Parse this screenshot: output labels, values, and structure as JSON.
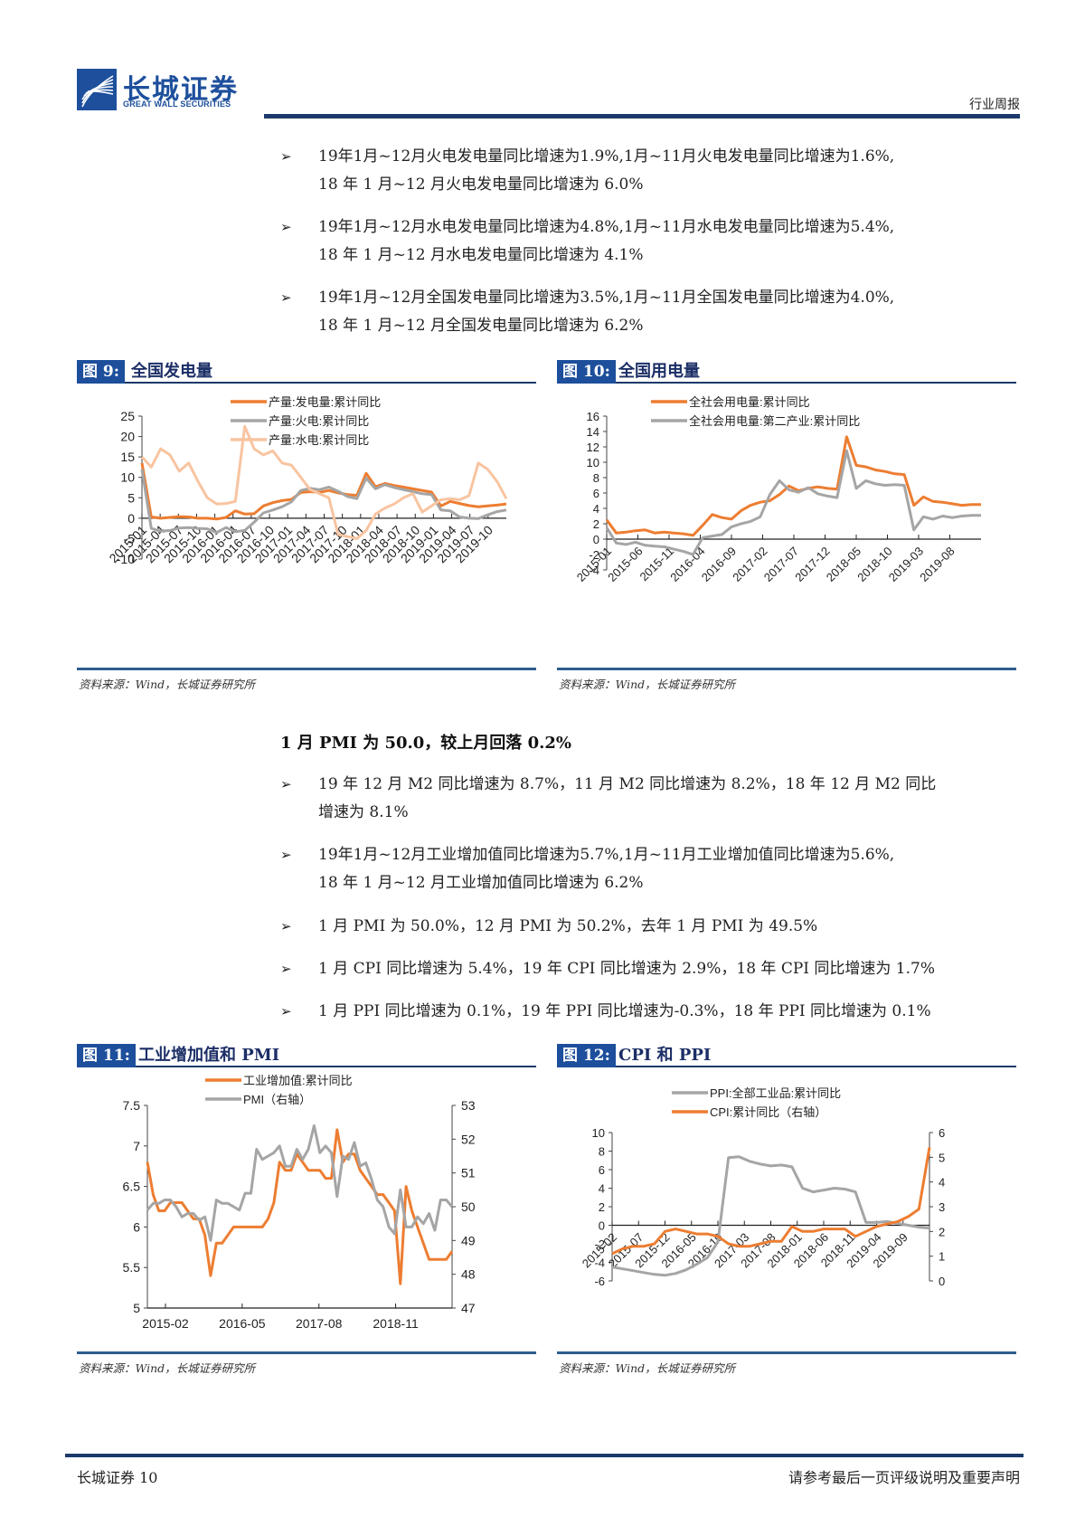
{
  "header": {
    "logo_cn": "长城证券",
    "logo_en": "GREAT WALL SECURITIES",
    "doc_type": "行业周报"
  },
  "bullets_top": [
    {
      "line1": "19年1月~12月火电发电量同比增速为1.9%,1月~11月火电发电量同比增速为1.6%,",
      "line2": "18 年 1 月~12 月火电发电量同比增速为 6.0%"
    },
    {
      "line1": "19年1月~12月水电发电量同比增速为4.8%,1月~11月水电发电量同比增速为5.4%,",
      "line2": "18 年 1 月~12 月水电发电量同比增速为 4.1%"
    },
    {
      "line1": "19年1月~12月全国发电量同比增速为3.5%,1月~11月全国发电量同比增速为4.0%,",
      "line2": "18 年 1 月~12 月全国发电量同比增速为 6.2%"
    }
  ],
  "section": {
    "title": "1 月 PMI 为 50.0，较上月回落 0.2%"
  },
  "bullets_mid": [
    {
      "line1": "19 年 12 月 M2 同比增速为 8.7%，11 月 M2 同比增速为 8.2%，18 年 12 月 M2 同比",
      "line2": "增速为 8.1%"
    },
    {
      "line1": "19年1月~12月工业增加值同比增速为5.7%,1月~11月工业增加值同比增速为5.6%,",
      "line2": "18 年 1 月~12 月工业增加值同比增速为 6.2%"
    },
    {
      "line1": "1 月 PMI 为 50.0%，12 月 PMI 为 50.2%，去年 1 月 PMI 为 49.5%",
      "line2": ""
    },
    {
      "line1": "1 月 CPI 同比增速为 5.4%，19 年 CPI 同比增速为 2.9%，18 年 CPI 同比增速为 1.7%",
      "line2": ""
    },
    {
      "line1": "1 月 PPI 同比增速为 0.1%，19 年 PPI 同比增速为-0.3%，18 年 PPI 同比增速为 0.1%",
      "line2": ""
    }
  ],
  "bullet_mark": "➢",
  "figures": {
    "fig9": {
      "num": "图 9:",
      "title": "全国发电量",
      "source": "资料来源：Wind，长城证券研究所"
    },
    "fig10": {
      "num": "图 10:",
      "title": "全国用电量",
      "source": "资料来源：Wind，长城证券研究所"
    },
    "fig11": {
      "num": "图 11:",
      "title": "工业增加值和 PMI",
      "source": "资料来源：Wind，长城证券研究所"
    },
    "fig12": {
      "num": "图 12:",
      "title": "CPI 和 PPI",
      "source": "资料来源：Wind，长城证券研究所"
    }
  },
  "colors": {
    "orange": "#ed7d31",
    "gray": "#a5a5a5",
    "light_orange": "#f8c4a0",
    "navy": "#1b3a6b",
    "brand_blue": "#1d4f9c"
  },
  "chart_data": [
    {
      "id": "fig9",
      "type": "line",
      "title": "全国发电量",
      "xlabel": "",
      "ylabel": "",
      "ylim": [
        -10,
        25
      ],
      "yticks": [
        -10,
        -5,
        0,
        5,
        10,
        15,
        20,
        25
      ],
      "x_tick_labels": [
        "2015-01",
        "2015-04",
        "2015-07",
        "2015-10",
        "2016-01",
        "2016-04",
        "2016-07",
        "2016-10",
        "2017-01",
        "2017-04",
        "2017-07",
        "2017-10",
        "2018-01",
        "2018-04",
        "2018-07",
        "2018-10",
        "2019-01",
        "2019-04",
        "2019-07",
        "2019-10"
      ],
      "legend_position": "top",
      "series": [
        {
          "name": "产量:发电量:累计同比",
          "color": "#ed7d31",
          "values": [
            13.5,
            0.3,
            0.0,
            0.2,
            0.4,
            0.3,
            0.0,
            0.0,
            -0.2,
            0.2,
            1.8,
            1.0,
            1.1,
            3.0,
            3.8,
            4.3,
            4.6,
            6.3,
            6.5,
            6.3,
            6.8,
            6.2,
            5.8,
            5.6,
            11.0,
            7.7,
            8.5,
            8.0,
            7.6,
            7.2,
            6.8,
            6.4,
            3.0,
            4.1,
            3.6,
            3.1,
            2.8,
            3.0,
            3.2,
            3.5
          ]
        },
        {
          "name": "产量:火电:累计同比",
          "color": "#a5a5a5",
          "values": [
            12.0,
            -2.5,
            -3.2,
            -3.0,
            -2.4,
            -2.3,
            -2.5,
            -2.6,
            -3.5,
            -2.3,
            -3.3,
            -3.0,
            -1.0,
            1.3,
            2.0,
            2.8,
            4.0,
            6.8,
            7.3,
            7.0,
            7.6,
            6.6,
            5.3,
            4.8,
            9.8,
            7.2,
            8.2,
            7.5,
            7.0,
            6.5,
            6.0,
            5.8,
            2.0,
            1.8,
            0.3,
            0.0,
            -0.1,
            0.8,
            1.6,
            2.0
          ]
        },
        {
          "name": "产量:水电:累计同比",
          "color": "#f8c4a0",
          "values": [
            15.0,
            12.5,
            17.0,
            15.5,
            11.5,
            13.5,
            9.0,
            5.0,
            3.5,
            3.6,
            4.1,
            22.5,
            17.0,
            15.5,
            16.5,
            13.5,
            13.0,
            10.0,
            7.0,
            6.0,
            5.0,
            -4.0,
            -4.5,
            -5.0,
            -3.0,
            1.0,
            2.5,
            3.5,
            5.0,
            6.0,
            1.5,
            3.0,
            4.5,
            4.8,
            4.5,
            5.5,
            13.5,
            12.0,
            9.0,
            4.8
          ]
        }
      ]
    },
    {
      "id": "fig10",
      "type": "line",
      "title": "全国用电量",
      "xlabel": "",
      "ylabel": "",
      "ylim": [
        -4,
        16
      ],
      "yticks": [
        -4,
        -2,
        0,
        2,
        4,
        6,
        8,
        10,
        12,
        14,
        16
      ],
      "x_tick_labels": [
        "2015-01",
        "2015-06",
        "2015-11",
        "2016-04",
        "2016-09",
        "2017-02",
        "2017-07",
        "2017-12",
        "2018-05",
        "2018-10",
        "2019-03",
        "2019-08"
      ],
      "legend_position": "top",
      "series": [
        {
          "name": "全社会用电量:累计同比",
          "color": "#ed7d31",
          "values": [
            2.5,
            0.8,
            0.9,
            1.1,
            1.2,
            0.8,
            0.9,
            0.8,
            0.7,
            0.5,
            1.8,
            3.2,
            2.8,
            2.6,
            3.7,
            4.4,
            4.8,
            5.0,
            5.8,
            6.9,
            6.3,
            6.6,
            6.8,
            6.6,
            6.5,
            13.3,
            9.6,
            9.4,
            9.0,
            8.8,
            8.5,
            8.4,
            4.4,
            5.5,
            4.9,
            4.8,
            4.6,
            4.4,
            4.5,
            4.5
          ]
        },
        {
          "name": "全社会用电量:第二产业:累计同比",
          "color": "#a5a5a5",
          "values": [
            1.5,
            -0.5,
            -0.7,
            -0.4,
            -0.8,
            -0.9,
            -1.0,
            -1.3,
            -1.6,
            -2.0,
            0.2,
            0.4,
            0.6,
            1.6,
            2.0,
            2.3,
            2.9,
            5.8,
            7.6,
            6.4,
            6.1,
            6.7,
            5.9,
            5.6,
            5.4,
            11.5,
            6.6,
            7.6,
            7.2,
            7.0,
            7.1,
            7.0,
            1.2,
            2.9,
            2.6,
            3.0,
            2.8,
            3.0,
            3.1,
            3.1
          ]
        }
      ]
    },
    {
      "id": "fig11",
      "type": "line",
      "title": "工业增加值和 PMI",
      "xlabel": "",
      "ylabel": "",
      "ylim": [
        5,
        7.5
      ],
      "yticks": [
        5,
        5.5,
        6,
        6.5,
        7,
        7.5
      ],
      "y2lim": [
        47,
        53
      ],
      "y2ticks": [
        47,
        48,
        49,
        50,
        51,
        52,
        53
      ],
      "x_tick_labels": [
        "2015-02",
        "2016-05",
        "2017-08",
        "2018-11"
      ],
      "legend_position": "top",
      "series": [
        {
          "name": "工业增加值:累计同比",
          "axis": "left",
          "color": "#ed7d31",
          "values": [
            6.8,
            6.4,
            6.2,
            6.2,
            6.3,
            6.3,
            6.3,
            6.2,
            6.1,
            6.1,
            5.9,
            5.4,
            5.8,
            5.8,
            5.9,
            6.0,
            6.0,
            6.0,
            6.0,
            6.0,
            6.0,
            6.1,
            6.3,
            6.8,
            6.7,
            6.7,
            6.9,
            6.8,
            6.7,
            6.7,
            6.7,
            6.6,
            6.6,
            7.2,
            6.8,
            6.9,
            6.9,
            6.7,
            6.6,
            6.5,
            6.4,
            6.4,
            6.3,
            6.2,
            5.3,
            6.5,
            6.2,
            6.0,
            5.8,
            5.6,
            5.6,
            5.6,
            5.6,
            5.7
          ]
        },
        {
          "name": "PMI（右轴）",
          "axis": "right",
          "color": "#a5a5a5",
          "values": [
            49.9,
            50.1,
            50.1,
            50.2,
            50.2,
            50.0,
            49.7,
            49.8,
            49.8,
            49.6,
            49.7,
            49.0,
            50.2,
            50.1,
            50.1,
            50.0,
            49.9,
            50.4,
            50.4,
            51.7,
            51.4,
            51.5,
            51.6,
            51.8,
            51.2,
            51.2,
            51.7,
            51.4,
            51.7,
            52.4,
            51.6,
            51.8,
            51.6,
            50.3,
            51.5,
            51.4,
            51.9,
            51.2,
            51.3,
            50.8,
            50.2,
            50.0,
            49.4,
            49.2,
            50.5,
            49.4,
            49.4,
            49.7,
            49.5,
            49.8,
            49.3,
            50.2,
            50.2,
            50.0
          ]
        }
      ]
    },
    {
      "id": "fig12",
      "type": "line",
      "title": "CPI 和 PPI",
      "xlabel": "",
      "ylabel": "",
      "ylim": [
        -6,
        10
      ],
      "yticks": [
        -6,
        -4,
        -2,
        0,
        2,
        4,
        6,
        8,
        10
      ],
      "y2lim": [
        0,
        6
      ],
      "y2ticks": [
        0,
        1,
        2,
        3,
        4,
        5,
        6
      ],
      "x_tick_labels": [
        "2015-02",
        "2015-07",
        "2015-12",
        "2016-05",
        "2016-10",
        "2017-03",
        "2017-08",
        "2018-01",
        "2018-06",
        "2018-11",
        "2019-04",
        "2019-09"
      ],
      "legend_position": "top",
      "series": [
        {
          "name": "PPI:全部工业品:累计同比",
          "axis": "left",
          "color": "#a5a5a5",
          "values": [
            -4.5,
            -4.7,
            -4.9,
            -5.1,
            -5.3,
            -5.4,
            -5.2,
            -4.8,
            -4.2,
            -3.5,
            -1.8,
            7.3,
            7.4,
            6.9,
            6.6,
            6.4,
            6.5,
            6.3,
            4.0,
            3.6,
            3.8,
            4.0,
            3.9,
            3.6,
            0.3,
            0.3,
            0.4,
            0.2,
            0.0,
            -0.2,
            -0.3
          ]
        },
        {
          "name": "CPI:累计同比（右轴）",
          "axis": "right",
          "color": "#ed7d31",
          "values": [
            1.1,
            1.3,
            1.4,
            1.4,
            1.5,
            2.0,
            2.1,
            2.0,
            1.9,
            1.9,
            1.8,
            1.5,
            1.4,
            1.4,
            1.5,
            1.6,
            1.6,
            2.2,
            2.0,
            2.0,
            2.1,
            2.1,
            2.1,
            1.8,
            2.0,
            2.2,
            2.3,
            2.4,
            2.6,
            2.9,
            5.4
          ]
        }
      ]
    }
  ],
  "footer": {
    "left": "长城证券 10",
    "right": "请参考最后一页评级说明及重要声明"
  }
}
